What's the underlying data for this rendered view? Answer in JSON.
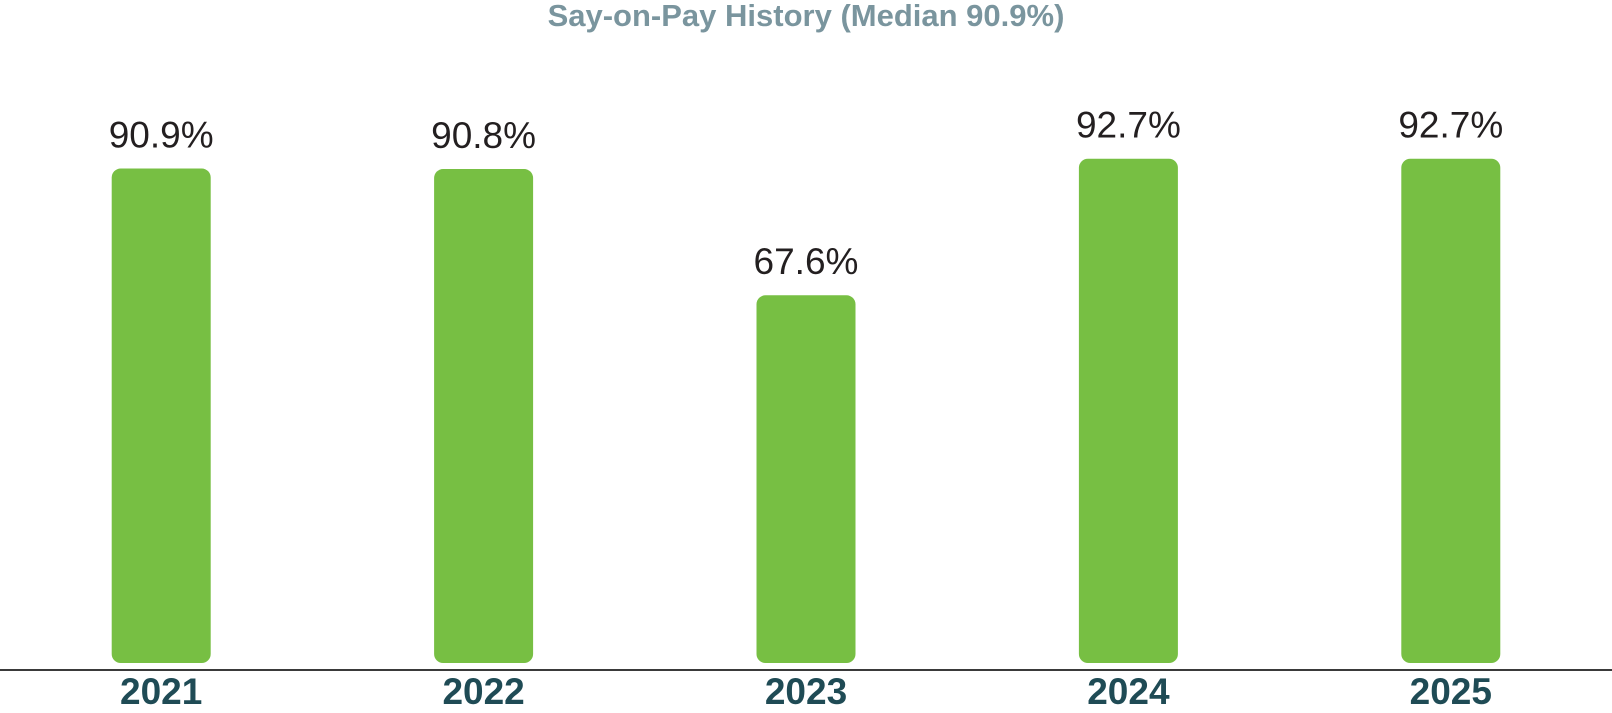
{
  "chart_data": {
    "type": "bar",
    "title": "Say-on-Pay History (Median 90.9%)",
    "categories": [
      "2021",
      "2022",
      "2023",
      "2024",
      "2025"
    ],
    "values": [
      90.9,
      90.8,
      67.6,
      92.7,
      92.7
    ],
    "value_labels": [
      "90.9%",
      "90.8%",
      "67.6%",
      "92.7%",
      "92.7%"
    ],
    "color": "#77bf43"
  }
}
